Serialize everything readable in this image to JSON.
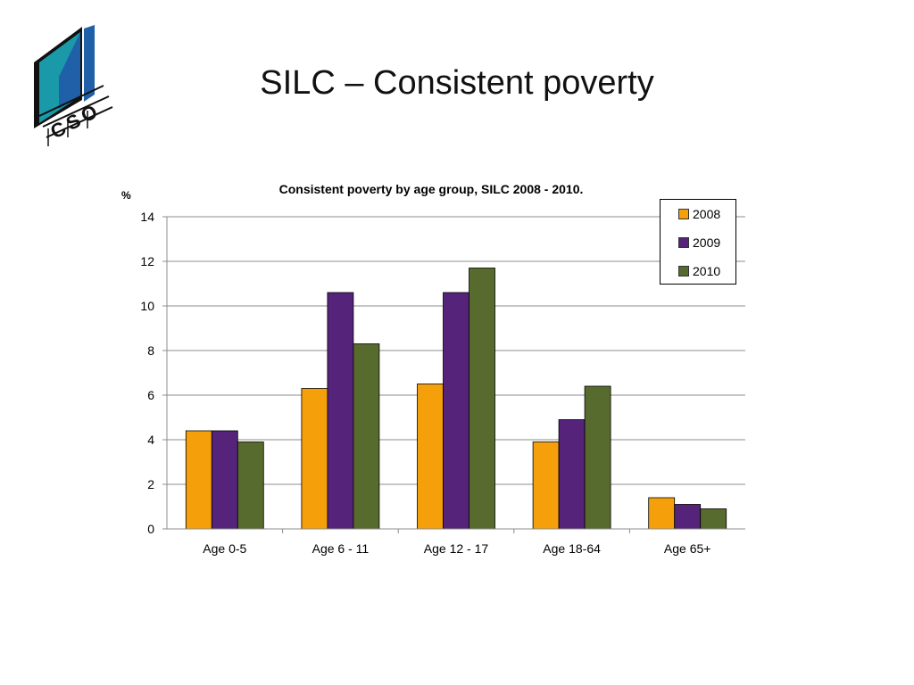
{
  "slide": {
    "title": "SILC – Consistent poverty"
  },
  "logo": {
    "text": "CSO",
    "colors": [
      "#1a9aa8",
      "#2060a8",
      "#111111"
    ]
  },
  "chart_data": {
    "type": "bar",
    "title": "Consistent poverty by age group, SILC 2008 - 2010.",
    "ylabel": "%",
    "xlabel": "",
    "ylim": [
      0,
      14
    ],
    "yticks": [
      0,
      2,
      4,
      6,
      8,
      10,
      12,
      14
    ],
    "grid": true,
    "legend_position": "top-right",
    "categories": [
      "Age 0-5",
      "Age 6 - 11",
      "Age 12 - 17",
      "Age 18-64",
      "Age 65+"
    ],
    "series": [
      {
        "name": "2008",
        "color": "#f5a00a",
        "values": [
          4.4,
          6.3,
          6.5,
          3.9,
          1.4
        ]
      },
      {
        "name": "2009",
        "color": "#55247a",
        "values": [
          4.4,
          10.6,
          10.6,
          4.9,
          1.1
        ]
      },
      {
        "name": "2010",
        "color": "#586b2e",
        "values": [
          3.9,
          8.3,
          11.7,
          6.4,
          0.9
        ]
      }
    ]
  }
}
